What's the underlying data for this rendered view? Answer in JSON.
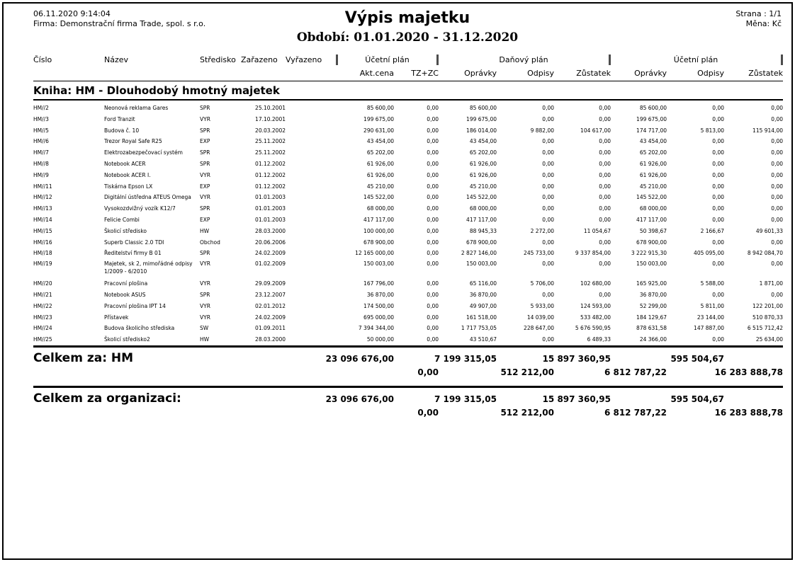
{
  "page_header": {
    "datetime": "06.11.2020 9:14:04",
    "company": "Firma: Demonstrační firma Trade, spol. s r.o.",
    "title": "Výpis majetku",
    "period": "Období: 01.01.2020 - 31.12.2020",
    "page": "Strana : 1/1",
    "currency": "Měna: Kč"
  },
  "colors": {
    "text": "#000000",
    "page_bg": "#ffffff",
    "group_separator": "#4d4d4d"
  },
  "table": {
    "groups": [
      "Účetní plán",
      "Daňový plán",
      "Účetní plán"
    ],
    "columns_left": [
      "Číslo",
      "Název",
      "Středisko",
      "Zařazeno",
      "Vyřazeno"
    ],
    "columns_right": [
      "Akt.cena",
      "TZ+ZC",
      "Oprávky",
      "Odpisy",
      "Zůstatek",
      "Oprávky",
      "Odpisy",
      "Zůstatek"
    ],
    "book_heading": "Kniha: HM - Dlouhodobý hmotný majetek",
    "rows": [
      {
        "num": "HM//2",
        "name": "Neonová reklama Gares",
        "name2": "",
        "dept": "SPR",
        "zarazeno": "25.10.2001",
        "vyrazeno": "",
        "akt_cena": "85 600,00",
        "tz_zc": "0,00",
        "opravky_d": "85 600,00",
        "odpisy_d": "0,00",
        "zustatek_d": "0,00",
        "opravky_u": "85 600,00",
        "odpisy_u": "0,00",
        "zustatek_u": "0,00"
      },
      {
        "num": "HM//3",
        "name": "Ford Tranzit",
        "name2": "",
        "dept": "VYR",
        "zarazeno": "17.10.2001",
        "vyrazeno": "",
        "akt_cena": "199 675,00",
        "tz_zc": "0,00",
        "opravky_d": "199 675,00",
        "odpisy_d": "0,00",
        "zustatek_d": "0,00",
        "opravky_u": "199 675,00",
        "odpisy_u": "0,00",
        "zustatek_u": "0,00"
      },
      {
        "num": "HM//5",
        "name": "Budova č. 10",
        "name2": "",
        "dept": "SPR",
        "zarazeno": "20.03.2002",
        "vyrazeno": "",
        "akt_cena": "290 631,00",
        "tz_zc": "0,00",
        "opravky_d": "186 014,00",
        "odpisy_d": "9 882,00",
        "zustatek_d": "104 617,00",
        "opravky_u": "174 717,00",
        "odpisy_u": "5 813,00",
        "zustatek_u": "115 914,00"
      },
      {
        "num": "HM//6",
        "name": "Trezor Royal Safe R25",
        "name2": "",
        "dept": "EXP",
        "zarazeno": "25.11.2002",
        "vyrazeno": "",
        "akt_cena": "43 454,00",
        "tz_zc": "0,00",
        "opravky_d": "43 454,00",
        "odpisy_d": "0,00",
        "zustatek_d": "0,00",
        "opravky_u": "43 454,00",
        "odpisy_u": "0,00",
        "zustatek_u": "0,00"
      },
      {
        "num": "HM//7",
        "name": "Elektrozabezpečovací systém",
        "name2": "",
        "dept": "SPR",
        "zarazeno": "25.11.2002",
        "vyrazeno": "",
        "akt_cena": "65 202,00",
        "tz_zc": "0,00",
        "opravky_d": "65 202,00",
        "odpisy_d": "0,00",
        "zustatek_d": "0,00",
        "opravky_u": "65 202,00",
        "odpisy_u": "0,00",
        "zustatek_u": "0,00"
      },
      {
        "num": "HM//8",
        "name": "Notebook ACER",
        "name2": "",
        "dept": "SPR",
        "zarazeno": "01.12.2002",
        "vyrazeno": "",
        "akt_cena": "61 926,00",
        "tz_zc": "0,00",
        "opravky_d": "61 926,00",
        "odpisy_d": "0,00",
        "zustatek_d": "0,00",
        "opravky_u": "61 926,00",
        "odpisy_u": "0,00",
        "zustatek_u": "0,00"
      },
      {
        "num": "HM//9",
        "name": "Notebook ACER I.",
        "name2": "",
        "dept": "VYR",
        "zarazeno": "01.12.2002",
        "vyrazeno": "",
        "akt_cena": "61 926,00",
        "tz_zc": "0,00",
        "opravky_d": "61 926,00",
        "odpisy_d": "0,00",
        "zustatek_d": "0,00",
        "opravky_u": "61 926,00",
        "odpisy_u": "0,00",
        "zustatek_u": "0,00"
      },
      {
        "num": "HM//11",
        "name": "Tiskárna Epson LX",
        "name2": "",
        "dept": "EXP",
        "zarazeno": "01.12.2002",
        "vyrazeno": "",
        "akt_cena": "45 210,00",
        "tz_zc": "0,00",
        "opravky_d": "45 210,00",
        "odpisy_d": "0,00",
        "zustatek_d": "0,00",
        "opravky_u": "45 210,00",
        "odpisy_u": "0,00",
        "zustatek_u": "0,00"
      },
      {
        "num": "HM//12",
        "name": "Digitální ústředna ATEUS Omega",
        "name2": "",
        "dept": "VYR",
        "zarazeno": "01.01.2003",
        "vyrazeno": "",
        "akt_cena": "145 522,00",
        "tz_zc": "0,00",
        "opravky_d": "145 522,00",
        "odpisy_d": "0,00",
        "zustatek_d": "0,00",
        "opravky_u": "145 522,00",
        "odpisy_u": "0,00",
        "zustatek_u": "0,00"
      },
      {
        "num": "HM//13",
        "name": "Vysokozdvižný vozík K12/7",
        "name2": "",
        "dept": "SPR",
        "zarazeno": "01.01.2003",
        "vyrazeno": "",
        "akt_cena": "68 000,00",
        "tz_zc": "0,00",
        "opravky_d": "68 000,00",
        "odpisy_d": "0,00",
        "zustatek_d": "0,00",
        "opravky_u": "68 000,00",
        "odpisy_u": "0,00",
        "zustatek_u": "0,00"
      },
      {
        "num": "HM//14",
        "name": "Felicie Combi",
        "name2": "",
        "dept": "EXP",
        "zarazeno": "01.01.2003",
        "vyrazeno": "",
        "akt_cena": "417 117,00",
        "tz_zc": "0,00",
        "opravky_d": "417 117,00",
        "odpisy_d": "0,00",
        "zustatek_d": "0,00",
        "opravky_u": "417 117,00",
        "odpisy_u": "0,00",
        "zustatek_u": "0,00"
      },
      {
        "num": "HM//15",
        "name": "Školicí středisko",
        "name2": "",
        "dept": "HW",
        "zarazeno": "28.03.2000",
        "vyrazeno": "",
        "akt_cena": "100 000,00",
        "tz_zc": "0,00",
        "opravky_d": "88 945,33",
        "odpisy_d": "2 272,00",
        "zustatek_d": "11 054,67",
        "opravky_u": "50 398,67",
        "odpisy_u": "2 166,67",
        "zustatek_u": "49 601,33"
      },
      {
        "num": "HM//16",
        "name": "Superb Classic 2.0 TDI",
        "name2": "",
        "dept": "Obchod",
        "zarazeno": "20.06.2006",
        "vyrazeno": "",
        "akt_cena": "678 900,00",
        "tz_zc": "0,00",
        "opravky_d": "678 900,00",
        "odpisy_d": "0,00",
        "zustatek_d": "0,00",
        "opravky_u": "678 900,00",
        "odpisy_u": "0,00",
        "zustatek_u": "0,00"
      },
      {
        "num": "HM//18",
        "name": "Ředitelství firmy B 01",
        "name2": "",
        "dept": "SPR",
        "zarazeno": "24.02.2009",
        "vyrazeno": "",
        "akt_cena": "12 165 000,00",
        "tz_zc": "0,00",
        "opravky_d": "2 827 146,00",
        "odpisy_d": "245 733,00",
        "zustatek_d": "9 337 854,00",
        "opravky_u": "3 222 915,30",
        "odpisy_u": "405 095,00",
        "zustatek_u": "8 942 084,70"
      },
      {
        "num": "HM//19",
        "name": "Majetek, sk 2, mimořádné odpisy",
        "name2": "1/2009 - 6/2010",
        "dept": "VYR",
        "zarazeno": "01.02.2009",
        "vyrazeno": "",
        "akt_cena": "150 003,00",
        "tz_zc": "0,00",
        "opravky_d": "150 003,00",
        "odpisy_d": "0,00",
        "zustatek_d": "0,00",
        "opravky_u": "150 003,00",
        "odpisy_u": "0,00",
        "zustatek_u": "0,00"
      },
      {
        "num": "HM//20",
        "name": "Pracovní plošina",
        "name2": "",
        "dept": "VYR",
        "zarazeno": "29.09.2009",
        "vyrazeno": "",
        "akt_cena": "167 796,00",
        "tz_zc": "0,00",
        "opravky_d": "65 116,00",
        "odpisy_d": "5 706,00",
        "zustatek_d": "102 680,00",
        "opravky_u": "165 925,00",
        "odpisy_u": "5 588,00",
        "zustatek_u": "1 871,00"
      },
      {
        "num": "HM//21",
        "name": "Notebook ASUS",
        "name2": "",
        "dept": "SPR",
        "zarazeno": "23.12.2007",
        "vyrazeno": "",
        "akt_cena": "36 870,00",
        "tz_zc": "0,00",
        "opravky_d": "36 870,00",
        "odpisy_d": "0,00",
        "zustatek_d": "0,00",
        "opravky_u": "36 870,00",
        "odpisy_u": "0,00",
        "zustatek_u": "0,00"
      },
      {
        "num": "HM//22",
        "name": "Pracovní plošina IPT 14",
        "name2": "",
        "dept": "VYR",
        "zarazeno": "02.01.2012",
        "vyrazeno": "",
        "akt_cena": "174 500,00",
        "tz_zc": "0,00",
        "opravky_d": "49 907,00",
        "odpisy_d": "5 933,00",
        "zustatek_d": "124 593,00",
        "opravky_u": "52 299,00",
        "odpisy_u": "5 811,00",
        "zustatek_u": "122 201,00"
      },
      {
        "num": "HM//23",
        "name": "Přístavek",
        "name2": "",
        "dept": "VYR",
        "zarazeno": "24.02.2009",
        "vyrazeno": "",
        "akt_cena": "695 000,00",
        "tz_zc": "0,00",
        "opravky_d": "161 518,00",
        "odpisy_d": "14 039,00",
        "zustatek_d": "533 482,00",
        "opravky_u": "184 129,67",
        "odpisy_u": "23 144,00",
        "zustatek_u": "510 870,33"
      },
      {
        "num": "HM//24",
        "name": "Budova školicího střediska",
        "name2": "",
        "dept": "SW",
        "zarazeno": "01.09.2011",
        "vyrazeno": "",
        "akt_cena": "7 394 344,00",
        "tz_zc": "0,00",
        "opravky_d": "1 717 753,05",
        "odpisy_d": "228 647,00",
        "zustatek_d": "5 676 590,95",
        "opravky_u": "878 631,58",
        "odpisy_u": "147 887,00",
        "zustatek_u": "6 515 712,42"
      },
      {
        "num": "HM//25",
        "name": "Školicí středisko2",
        "name2": "",
        "dept": "HW",
        "zarazeno": "28.03.2000",
        "vyrazeno": "",
        "akt_cena": "50 000,00",
        "tz_zc": "0,00",
        "opravky_d": "43 510,67",
        "odpisy_d": "0,00",
        "zustatek_d": "6 489,33",
        "opravky_u": "24 366,00",
        "odpisy_u": "0,00",
        "zustatek_u": "25 634,00"
      }
    ]
  },
  "totals": {
    "hm": {
      "label": "Celkem za: HM",
      "akt_cena": "23 096 676,00",
      "tz_zc": "0,00",
      "opravky_d": "7 199 315,05",
      "odpisy_d": "512 212,00",
      "zustatek_d": "15 897 360,95",
      "opravky_u": "6 812 787,22",
      "odpisy_u": "595 504,67",
      "zustatek_u": "16 283 888,78"
    },
    "org": {
      "label": "Celkem za organizaci:",
      "akt_cena": "23 096 676,00",
      "tz_zc": "0,00",
      "opravky_d": "7 199 315,05",
      "odpisy_d": "512 212,00",
      "zustatek_d": "15 897 360,95",
      "opravky_u": "6 812 787,22",
      "odpisy_u": "595 504,67",
      "zustatek_u": "16 283 888,78"
    }
  }
}
